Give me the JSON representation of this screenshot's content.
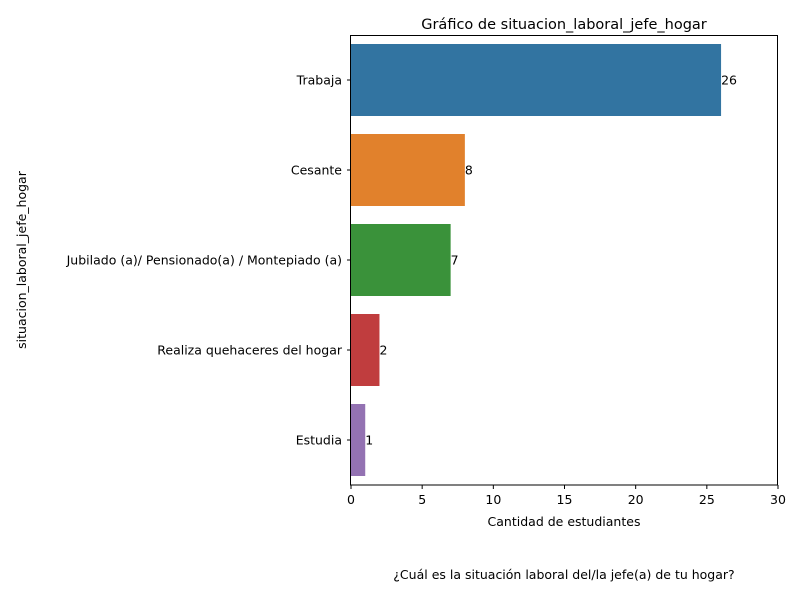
{
  "chart_data": {
    "type": "bar",
    "orientation": "horizontal",
    "title": "Gráfico de situacion_laboral_jefe_hogar",
    "xlabel": "Cantidad de estudiantes",
    "ylabel": "situacion_laboral_jefe_hogar",
    "caption": "¿Cuál es la situación laboral del/la jefe(a) de tu hogar?",
    "categories": [
      "Trabaja",
      "Cesante",
      "Jubilado (a)/ Pensionado(a) / Montepiado (a)",
      "Realiza quehaceres del hogar",
      "Estudia"
    ],
    "values": [
      26,
      8,
      7,
      2,
      1
    ],
    "colors": [
      "#3274a1",
      "#e1812c",
      "#3a923a",
      "#c03d3e",
      "#9372b2"
    ],
    "xlim": [
      0,
      30
    ],
    "xticks": [
      0,
      5,
      10,
      15,
      20,
      25,
      30
    ],
    "grid": false,
    "data_labels": true
  }
}
